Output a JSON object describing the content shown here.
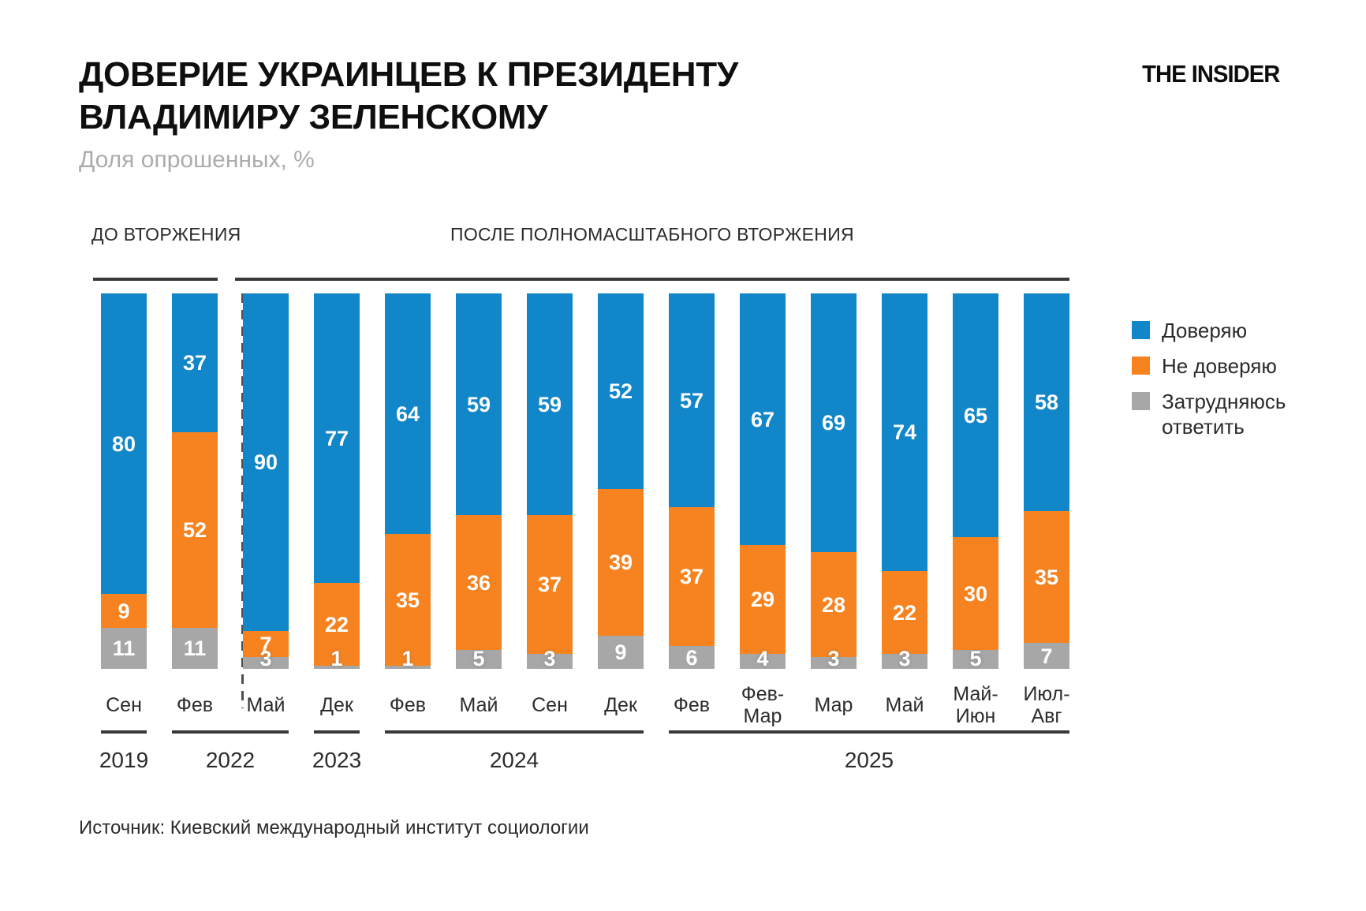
{
  "header": {
    "title_line1": "ДОВЕРИЕ УКРАИНЦЕВ К ПРЕЗИДЕНТУ",
    "title_line2": "ВЛАДИМИРУ ЗЕЛЕНСКОМУ",
    "subtitle": "Доля опрошенных, %",
    "brand": "THE INSIDER"
  },
  "sections": [
    {
      "label": "ДО ВТОРЖЕНИЯ",
      "from": 0,
      "to": 1
    },
    {
      "label": "ПОСЛЕ ПОЛНОМАСШТАБНОГО ВТОРЖЕНИЯ",
      "from": 2,
      "to": 13
    }
  ],
  "chart_data": {
    "type": "bar",
    "stacked": true,
    "unit": "%",
    "ylim": [
      0,
      100
    ],
    "grid": false,
    "legend_position": "right",
    "categories": [
      "Сен",
      "Фев",
      "Май",
      "Дек",
      "Фев",
      "Май",
      "Сен",
      "Дек",
      "Фев",
      "Фев-\nМар",
      "Мар",
      "Май",
      "Май-\nИюн",
      "Июл-\nАвг"
    ],
    "year_groups": [
      {
        "year": "2019",
        "from": 0,
        "to": 0
      },
      {
        "year": "2022",
        "from": 1,
        "to": 2
      },
      {
        "year": "2023",
        "from": 3,
        "to": 3
      },
      {
        "year": "2024",
        "from": 4,
        "to": 7
      },
      {
        "year": "2025",
        "from": 8,
        "to": 13
      }
    ],
    "divider_after_index": 1,
    "series": [
      {
        "name": "Доверяю",
        "key": "trust",
        "color": "#1186C8",
        "values": [
          80,
          37,
          90,
          77,
          64,
          59,
          59,
          52,
          57,
          67,
          69,
          74,
          65,
          58
        ]
      },
      {
        "name": "Не доверяю",
        "key": "distrust",
        "color": "#F6831F",
        "values": [
          9,
          52,
          7,
          22,
          35,
          36,
          37,
          39,
          37,
          29,
          28,
          22,
          30,
          35
        ]
      },
      {
        "name": "Затрудняюсь ответить",
        "key": "undecided",
        "color": "#A7A7A7",
        "values": [
          11,
          11,
          3,
          1,
          1,
          5,
          3,
          9,
          6,
          4,
          3,
          3,
          5,
          7
        ]
      }
    ]
  },
  "legend": [
    {
      "label": "Доверяю",
      "color": "#1186C8"
    },
    {
      "label": "Не доверяю",
      "color": "#F6831F"
    },
    {
      "label": "Затрудняюсь\nответить",
      "color": "#A7A7A7"
    }
  ],
  "source": "Источник: Киевский международный институт социологии"
}
